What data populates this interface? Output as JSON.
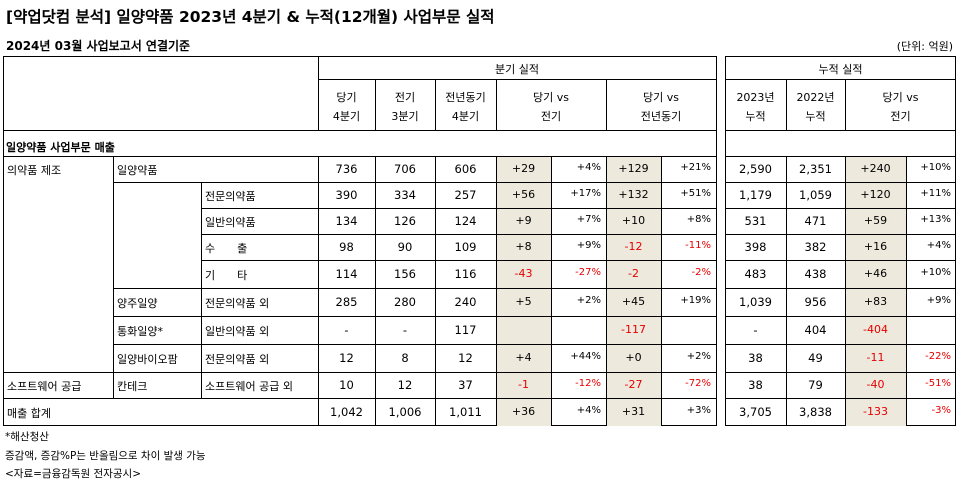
{
  "title": "[약업닷컴 분석] 일양약품 2023년 4분기 & 누적(12개월) 사업부문 실적",
  "subtitle": "2024년 03월 사업보고서 연결기준",
  "unit": "(단위: 억원)",
  "header": {
    "quarter_group": "분기 실적",
    "cumulative_group": "누적 실적",
    "cols": {
      "cur_q": [
        "당기",
        "4분기"
      ],
      "prev_q": [
        "전기",
        "3분기"
      ],
      "yoy_q": [
        "전년동기",
        "4분기"
      ],
      "vs_prev": [
        "당기 vs",
        "전기"
      ],
      "vs_yoy": [
        "당기 vs",
        "전년동기"
      ],
      "y2023": [
        "2023년",
        "누적"
      ],
      "y2022": [
        "2022년",
        "누적"
      ],
      "vs_cum": [
        "당기 vs",
        "전기"
      ]
    }
  },
  "section_label": "일양약품 사업부문 매출",
  "rows": [
    {
      "c1": "의약품 제조",
      "c2": "일양약품",
      "c3": "",
      "v": [
        "736",
        "706",
        "606",
        "+29",
        "+4%",
        "+129",
        "+21%",
        "2,590",
        "2,351",
        "+240",
        "+10%"
      ]
    },
    {
      "c1": "",
      "c2": "",
      "c3": "전문의약품",
      "v": [
        "390",
        "334",
        "257",
        "+56",
        "+17%",
        "+132",
        "+51%",
        "1,179",
        "1,059",
        "+120",
        "+11%"
      ]
    },
    {
      "c1": "",
      "c2": "",
      "c3": "일반의약품",
      "v": [
        "134",
        "126",
        "124",
        "+9",
        "+7%",
        "+10",
        "+8%",
        "531",
        "471",
        "+59",
        "+13%"
      ]
    },
    {
      "c1": "",
      "c2": "",
      "c3": "수　　출",
      "v": [
        "98",
        "90",
        "109",
        "+8",
        "+9%",
        "-12",
        "-11%",
        "398",
        "382",
        "+16",
        "+4%"
      ]
    },
    {
      "c1": "",
      "c2": "",
      "c3": "기　　타",
      "v": [
        "114",
        "156",
        "116",
        "-43",
        "-27%",
        "-2",
        "-2%",
        "483",
        "438",
        "+46",
        "+10%"
      ]
    },
    {
      "c1": "",
      "c2": "양주일양",
      "c3": "전문의약품 외",
      "v": [
        "285",
        "280",
        "240",
        "+5",
        "+2%",
        "+45",
        "+19%",
        "1,039",
        "956",
        "+83",
        "+9%"
      ]
    },
    {
      "c1": "",
      "c2": "통화일양*",
      "c3": "일반의약품 외",
      "v": [
        "-",
        "-",
        "117",
        "",
        "",
        "-117",
        "",
        "-",
        "404",
        "-404",
        ""
      ]
    },
    {
      "c1": "",
      "c2": "일양바이오팜",
      "c3": "전문의약품 외",
      "v": [
        "12",
        "8",
        "12",
        "+4",
        "+44%",
        "+0",
        "+2%",
        "38",
        "49",
        "-11",
        "-22%"
      ]
    },
    {
      "c1": "소프트웨어 공급",
      "c2": "칸테크",
      "c3": "소프트웨어 공급 외",
      "v": [
        "10",
        "12",
        "37",
        "-1",
        "-12%",
        "-27",
        "-72%",
        "38",
        "79",
        "-40",
        "-51%"
      ]
    },
    {
      "c1": "매출 합계",
      "c2": "",
      "c3": "",
      "v": [
        "1,042",
        "1,006",
        "1,011",
        "+36",
        "+4%",
        "+31",
        "+3%",
        "3,705",
        "3,838",
        "-133",
        "-3%"
      ]
    }
  ],
  "footnotes": [
    "*해산청산",
    "증감액, 증감%P는 반올림으로 차이 발생 가능",
    "<자료=금융감독원 전자공시>"
  ],
  "colors": {
    "shade": "#ede9dd",
    "negative": "#e60000"
  }
}
